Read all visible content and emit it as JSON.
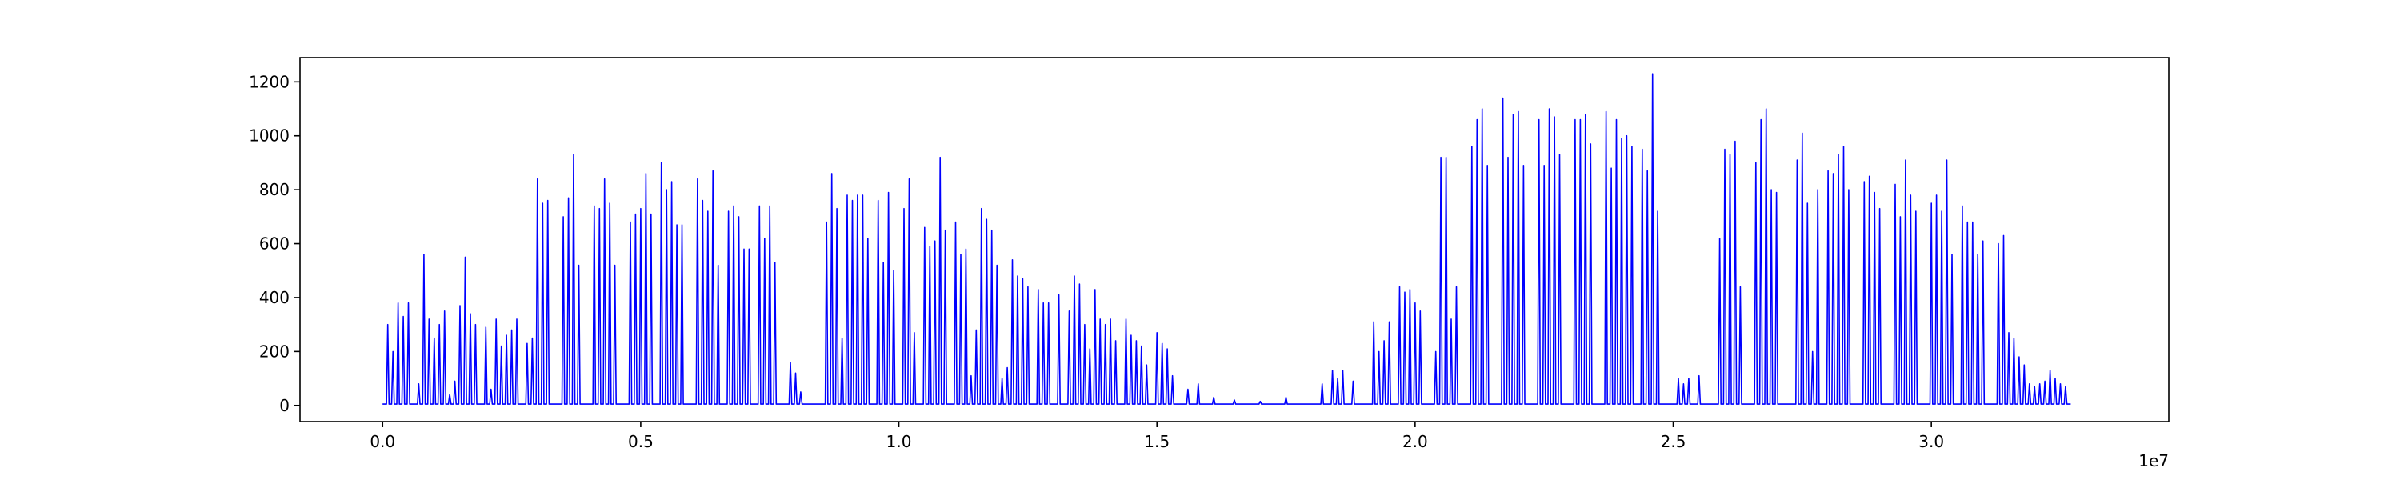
{
  "chart_data": {
    "type": "line",
    "title": "",
    "xlabel": "",
    "ylabel": "",
    "x_offset_text": "1e7",
    "xlim": [
      -0.16,
      3.46
    ],
    "ylim": [
      -60,
      1290
    ],
    "x_ticks": [
      0.0,
      0.5,
      1.0,
      1.5,
      2.0,
      2.5,
      3.0
    ],
    "x_tick_labels": [
      "0.0",
      "0.5",
      "1.0",
      "1.5",
      "2.0",
      "2.5",
      "3.0"
    ],
    "y_ticks": [
      0,
      200,
      400,
      600,
      800,
      1000,
      1200
    ],
    "y_tick_labels": [
      "0",
      "200",
      "400",
      "600",
      "800",
      "1000",
      "1200"
    ],
    "grid": false,
    "legend": "none",
    "color": "#0000ff",
    "series": [
      {
        "peaks": [
          [
            0.01,
            300
          ],
          [
            0.02,
            200
          ],
          [
            0.03,
            380
          ],
          [
            0.04,
            330
          ],
          [
            0.05,
            380
          ],
          [
            0.07,
            80
          ],
          [
            0.08,
            560
          ],
          [
            0.09,
            320
          ],
          [
            0.1,
            250
          ],
          [
            0.11,
            300
          ],
          [
            0.12,
            350
          ],
          [
            0.13,
            40
          ],
          [
            0.14,
            90
          ],
          [
            0.15,
            370
          ],
          [
            0.16,
            550
          ],
          [
            0.17,
            340
          ],
          [
            0.18,
            300
          ],
          [
            0.2,
            290
          ],
          [
            0.21,
            60
          ],
          [
            0.22,
            320
          ],
          [
            0.23,
            220
          ],
          [
            0.24,
            260
          ],
          [
            0.25,
            280
          ],
          [
            0.26,
            320
          ],
          [
            0.28,
            230
          ],
          [
            0.29,
            250
          ],
          [
            0.3,
            840
          ],
          [
            0.31,
            750
          ],
          [
            0.32,
            760
          ],
          [
            0.35,
            700
          ],
          [
            0.36,
            770
          ],
          [
            0.37,
            930
          ],
          [
            0.38,
            520
          ],
          [
            0.41,
            740
          ],
          [
            0.42,
            730
          ],
          [
            0.43,
            840
          ],
          [
            0.44,
            750
          ],
          [
            0.45,
            520
          ],
          [
            0.48,
            680
          ],
          [
            0.49,
            710
          ],
          [
            0.5,
            730
          ],
          [
            0.51,
            860
          ],
          [
            0.52,
            710
          ],
          [
            0.54,
            900
          ],
          [
            0.55,
            800
          ],
          [
            0.56,
            830
          ],
          [
            0.57,
            670
          ],
          [
            0.58,
            670
          ],
          [
            0.61,
            840
          ],
          [
            0.62,
            760
          ],
          [
            0.63,
            720
          ],
          [
            0.64,
            870
          ],
          [
            0.65,
            520
          ],
          [
            0.67,
            720
          ],
          [
            0.68,
            740
          ],
          [
            0.69,
            700
          ],
          [
            0.7,
            580
          ],
          [
            0.71,
            580
          ],
          [
            0.73,
            740
          ],
          [
            0.74,
            620
          ],
          [
            0.75,
            740
          ],
          [
            0.76,
            530
          ],
          [
            0.79,
            160
          ],
          [
            0.8,
            120
          ],
          [
            0.81,
            50
          ],
          [
            0.86,
            680
          ],
          [
            0.87,
            860
          ],
          [
            0.88,
            730
          ],
          [
            0.89,
            250
          ],
          [
            0.9,
            780
          ],
          [
            0.91,
            760
          ],
          [
            0.92,
            780
          ],
          [
            0.93,
            780
          ],
          [
            0.94,
            620
          ],
          [
            0.96,
            760
          ],
          [
            0.97,
            530
          ],
          [
            0.98,
            790
          ],
          [
            0.99,
            500
          ],
          [
            1.01,
            730
          ],
          [
            1.02,
            840
          ],
          [
            1.03,
            270
          ],
          [
            1.05,
            660
          ],
          [
            1.06,
            590
          ],
          [
            1.07,
            610
          ],
          [
            1.08,
            920
          ],
          [
            1.09,
            650
          ],
          [
            1.11,
            680
          ],
          [
            1.12,
            560
          ],
          [
            1.13,
            580
          ],
          [
            1.14,
            110
          ],
          [
            1.15,
            280
          ],
          [
            1.16,
            730
          ],
          [
            1.17,
            690
          ],
          [
            1.18,
            650
          ],
          [
            1.19,
            520
          ],
          [
            1.2,
            100
          ],
          [
            1.21,
            140
          ],
          [
            1.22,
            540
          ],
          [
            1.23,
            480
          ],
          [
            1.24,
            470
          ],
          [
            1.25,
            440
          ],
          [
            1.27,
            430
          ],
          [
            1.28,
            380
          ],
          [
            1.29,
            380
          ],
          [
            1.31,
            410
          ],
          [
            1.33,
            350
          ],
          [
            1.34,
            480
          ],
          [
            1.35,
            450
          ],
          [
            1.36,
            300
          ],
          [
            1.37,
            210
          ],
          [
            1.38,
            430
          ],
          [
            1.39,
            320
          ],
          [
            1.4,
            300
          ],
          [
            1.41,
            320
          ],
          [
            1.42,
            240
          ],
          [
            1.44,
            320
          ],
          [
            1.45,
            260
          ],
          [
            1.46,
            240
          ],
          [
            1.47,
            220
          ],
          [
            1.48,
            150
          ],
          [
            1.5,
            270
          ],
          [
            1.51,
            230
          ],
          [
            1.52,
            210
          ],
          [
            1.53,
            110
          ],
          [
            1.56,
            60
          ],
          [
            1.58,
            80
          ],
          [
            1.61,
            30
          ],
          [
            1.65,
            20
          ],
          [
            1.7,
            15
          ],
          [
            1.75,
            30
          ],
          [
            1.82,
            80
          ],
          [
            1.84,
            130
          ],
          [
            1.85,
            100
          ],
          [
            1.86,
            130
          ],
          [
            1.88,
            90
          ],
          [
            1.92,
            310
          ],
          [
            1.93,
            200
          ],
          [
            1.94,
            240
          ],
          [
            1.95,
            310
          ],
          [
            1.97,
            440
          ],
          [
            1.98,
            420
          ],
          [
            1.99,
            430
          ],
          [
            2.0,
            380
          ],
          [
            2.01,
            350
          ],
          [
            2.04,
            200
          ],
          [
            2.05,
            920
          ],
          [
            2.06,
            920
          ],
          [
            2.07,
            320
          ],
          [
            2.08,
            440
          ],
          [
            2.11,
            960
          ],
          [
            2.12,
            1060
          ],
          [
            2.13,
            1100
          ],
          [
            2.14,
            890
          ],
          [
            2.17,
            1140
          ],
          [
            2.18,
            920
          ],
          [
            2.19,
            1080
          ],
          [
            2.2,
            1090
          ],
          [
            2.21,
            890
          ],
          [
            2.24,
            1060
          ],
          [
            2.25,
            890
          ],
          [
            2.26,
            1100
          ],
          [
            2.27,
            1070
          ],
          [
            2.28,
            930
          ],
          [
            2.31,
            1060
          ],
          [
            2.32,
            1060
          ],
          [
            2.33,
            1080
          ],
          [
            2.34,
            970
          ],
          [
            2.37,
            1090
          ],
          [
            2.38,
            880
          ],
          [
            2.39,
            1060
          ],
          [
            2.4,
            990
          ],
          [
            2.41,
            1000
          ],
          [
            2.42,
            960
          ],
          [
            2.44,
            950
          ],
          [
            2.45,
            870
          ],
          [
            2.46,
            1230
          ],
          [
            2.47,
            720
          ],
          [
            2.51,
            100
          ],
          [
            2.52,
            80
          ],
          [
            2.53,
            100
          ],
          [
            2.55,
            110
          ],
          [
            2.59,
            620
          ],
          [
            2.6,
            950
          ],
          [
            2.61,
            930
          ],
          [
            2.62,
            980
          ],
          [
            2.63,
            440
          ],
          [
            2.66,
            900
          ],
          [
            2.67,
            1060
          ],
          [
            2.68,
            1100
          ],
          [
            2.69,
            800
          ],
          [
            2.7,
            790
          ],
          [
            2.74,
            910
          ],
          [
            2.75,
            1010
          ],
          [
            2.76,
            750
          ],
          [
            2.77,
            200
          ],
          [
            2.78,
            800
          ],
          [
            2.8,
            870
          ],
          [
            2.81,
            860
          ],
          [
            2.82,
            930
          ],
          [
            2.83,
            960
          ],
          [
            2.84,
            800
          ],
          [
            2.87,
            830
          ],
          [
            2.88,
            850
          ],
          [
            2.89,
            790
          ],
          [
            2.9,
            730
          ],
          [
            2.93,
            820
          ],
          [
            2.94,
            700
          ],
          [
            2.95,
            910
          ],
          [
            2.96,
            780
          ],
          [
            2.97,
            720
          ],
          [
            3.0,
            750
          ],
          [
            3.01,
            780
          ],
          [
            3.02,
            720
          ],
          [
            3.03,
            910
          ],
          [
            3.04,
            560
          ],
          [
            3.06,
            740
          ],
          [
            3.07,
            680
          ],
          [
            3.08,
            680
          ],
          [
            3.09,
            560
          ],
          [
            3.1,
            610
          ],
          [
            3.13,
            600
          ],
          [
            3.14,
            630
          ],
          [
            3.15,
            270
          ],
          [
            3.16,
            250
          ],
          [
            3.17,
            180
          ],
          [
            3.18,
            150
          ],
          [
            3.19,
            80
          ],
          [
            3.2,
            70
          ],
          [
            3.21,
            80
          ],
          [
            3.22,
            90
          ],
          [
            3.23,
            130
          ],
          [
            3.24,
            100
          ],
          [
            3.25,
            80
          ],
          [
            3.26,
            70
          ]
        ]
      }
    ]
  }
}
